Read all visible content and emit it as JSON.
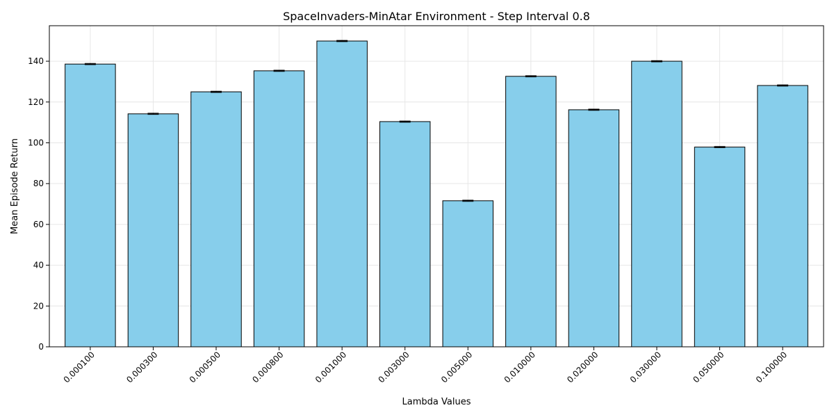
{
  "chart_data": {
    "type": "bar",
    "title": "SpaceInvaders-MinAtar Environment - Step Interval 0.8",
    "xlabel": "Lambda Values",
    "ylabel": "Mean Episode Return",
    "categories": [
      "0.000100",
      "0.000300",
      "0.000500",
      "0.000800",
      "0.001000",
      "0.003000",
      "0.005000",
      "0.010000",
      "0.020000",
      "0.030000",
      "0.050000",
      "0.100000"
    ],
    "values": [
      138.6,
      114.2,
      125.0,
      135.3,
      149.9,
      110.4,
      71.6,
      132.6,
      116.2,
      140.0,
      97.9,
      128.1
    ],
    "errors": [
      0.3,
      0.3,
      0.3,
      0.3,
      0.3,
      0.3,
      0.3,
      0.3,
      0.3,
      0.3,
      0.3,
      0.3
    ],
    "yticks": [
      0,
      20,
      40,
      60,
      80,
      100,
      120,
      140
    ],
    "ylim": [
      0,
      157.4
    ],
    "grid": true,
    "colors": {
      "bar": "#87ceeb",
      "edge": "#000000",
      "grid": "#e6e6e6"
    }
  }
}
